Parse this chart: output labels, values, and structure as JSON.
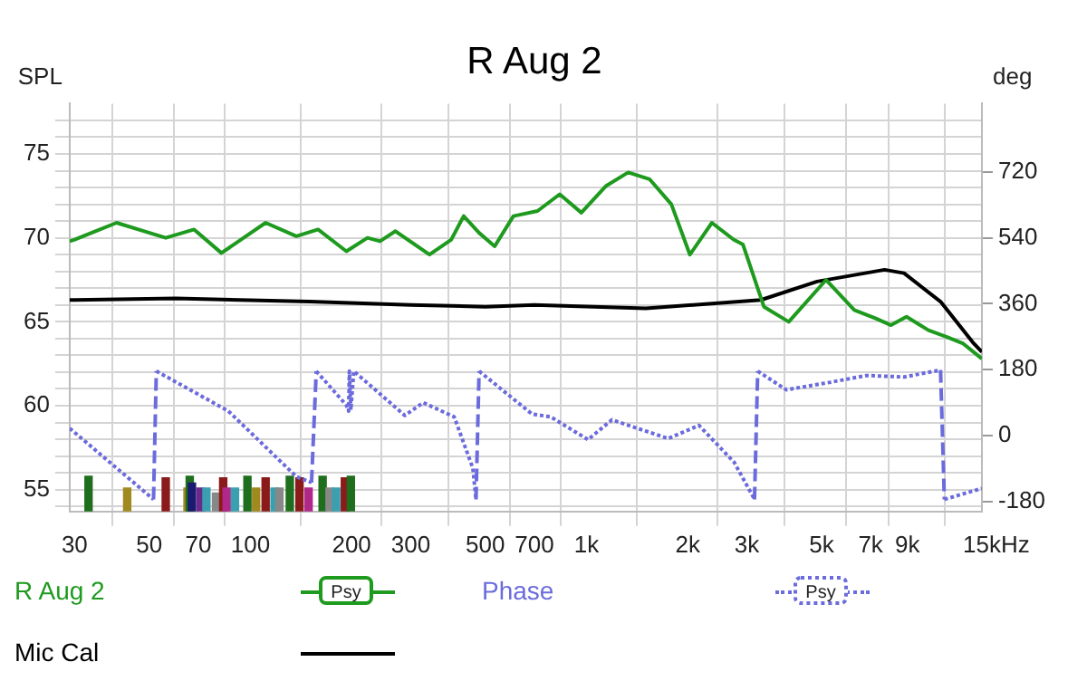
{
  "chart_data": {
    "type": "line",
    "title": "R Aug 2",
    "ylabel": "SPL",
    "xlabel": "Hz",
    "y2label": "deg",
    "annotations": [
      "Psy",
      "Psy"
    ],
    "log": "x",
    "grid": true,
    "legend": "bottom",
    "marker": "none",
    "xlim": [
      29,
      15000
    ],
    "xticks": [
      30,
      50,
      70,
      100,
      200,
      300,
      500,
      700,
      {
        "value": 1000,
        "label": "1k"
      },
      {
        "value": 2000,
        "label": "2k"
      },
      {
        "value": 3000,
        "label": "3k"
      },
      {
        "value": 5000,
        "label": "5k"
      },
      {
        "value": 7000,
        "label": "7k"
      },
      {
        "value": 9000,
        "label": "9k"
      },
      {
        "value": 15000,
        "label": "15k"
      }
    ],
    "ylim": [
      53.7,
      78
    ],
    "yticks": [
      {
        "value": 54,
        "label": null
      },
      55,
      {
        "value": 56,
        "label": null
      },
      {
        "value": 57,
        "label": null
      },
      {
        "value": 58,
        "label": null
      },
      {
        "value": 59,
        "label": null
      },
      60,
      {
        "value": 61,
        "label": null
      },
      {
        "value": 62,
        "label": null
      },
      {
        "value": 63,
        "label": null
      },
      {
        "value": 64,
        "label": null
      },
      65,
      {
        "value": 66,
        "label": null
      },
      {
        "value": 67,
        "label": null
      },
      {
        "value": 68,
        "label": null
      },
      {
        "value": 69,
        "label": null
      },
      70,
      {
        "value": 71,
        "label": null
      },
      {
        "value": 72,
        "label": null
      },
      {
        "value": 73,
        "label": null
      },
      {
        "value": 74,
        "label": null
      },
      75,
      {
        "value": 76,
        "label": null
      },
      {
        "value": 77,
        "label": null
      }
    ],
    "y2lim": [
      -207,
      906
    ],
    "y2ticks": [
      -180,
      0,
      180,
      360,
      540,
      720
    ],
    "series": [
      {
        "name": "R Aug 2",
        "color": "#1e9a1e",
        "line_style": "solid",
        "x": [
          29,
          30,
          40,
          56,
          68,
          82,
          111,
          137,
          159,
          193,
          223,
          243,
          270,
          341,
          396,
          431,
          479,
          533,
          606,
          715,
          832,
          965,
          1144,
          1330,
          1539,
          1788,
          2030,
          2360,
          2737,
          2920,
          3370,
          3995,
          5160,
          6260,
          7250,
          8050,
          8950,
          10400,
          11800,
          13200,
          15000
        ],
        "values": [
          69.8,
          69.9,
          70.9,
          70.0,
          70.5,
          69.1,
          70.9,
          70.1,
          70.5,
          69.2,
          70.0,
          69.8,
          70.4,
          69.0,
          69.9,
          71.3,
          70.3,
          69.5,
          71.3,
          71.6,
          72.6,
          71.5,
          73.1,
          73.9,
          73.5,
          72.0,
          69.0,
          70.9,
          69.9,
          69.6,
          65.9,
          65.0,
          67.5,
          65.7,
          65.2,
          64.8,
          65.3,
          64.5,
          64.1,
          63.7,
          62.8
        ]
      },
      {
        "name": "Phase",
        "color": "#6b6bdd",
        "line_style": "dotted",
        "axis": "y2",
        "x": [
          29,
          51.5,
          52.5,
          86,
          137,
          152,
          157,
          193,
          196,
          197,
          199,
          203,
          288,
          327,
          404,
          459,
          469,
          479,
          688,
          783,
          1010,
          1190,
          1750,
          2160,
          2750,
          3160,
          3230,
          3930,
          5270,
          6810,
          8800,
          11300,
          11600,
          15000
        ],
        "values": [
          20,
          -174,
          176,
          67,
          -112,
          -128,
          176,
          83,
          67,
          176,
          70,
          176,
          55,
          90,
          51,
          -89,
          -174,
          176,
          59,
          51,
          -11,
          43,
          -8,
          28,
          -73,
          -174,
          176,
          125,
          145,
          164,
          160,
          179,
          -174,
          -144
        ]
      },
      {
        "name": "Mic Cal",
        "color": "#000000",
        "line_style": "solid",
        "x": [
          29,
          30,
          60,
          150,
          300,
          500,
          700,
          1500,
          3300,
          4850,
          7700,
          8800,
          11300,
          14200,
          15000
        ],
        "values": [
          66.3,
          66.3,
          66.4,
          66.2,
          66.0,
          65.9,
          66.0,
          65.8,
          66.3,
          67.4,
          68.1,
          67.9,
          66.2,
          63.7,
          63.2
        ]
      },
      {
        "type": "bar",
        "x": [
          33,
          43,
          56,
          65,
          66,
          67,
          71,
          74,
          79,
          83,
          85,
          90,
          98,
          104,
          111,
          118,
          122,
          131,
          140,
          149,
          164,
          172,
          180,
          191,
          199
        ],
        "values": [
          55.8,
          55.1,
          55.7,
          55.1,
          55.8,
          55.4,
          55.1,
          55.1,
          54.8,
          55.7,
          55.1,
          55.1,
          55.8,
          55.1,
          55.7,
          55.1,
          55.1,
          55.8,
          55.7,
          55.1,
          55.8,
          55.1,
          55.1,
          55.7,
          55.8
        ],
        "colors": [
          "#1e6e1e",
          "#a08a20",
          "#8b1a1a",
          "#a08a20",
          "#1e6e1e",
          "#1a1a70",
          "#6a2a8a",
          "#3aa0b0",
          "#888888",
          "#8b1a1a",
          "#b0288a",
          "#3aa0b0",
          "#1e6e1e",
          "#a08a20",
          "#8b1a1a",
          "#3aa0b0",
          "#888888",
          "#1e6e1e",
          "#8b1a1a",
          "#b0288a",
          "#1e6e1e",
          "#888888",
          "#3aa0b0",
          "#8b1a1a",
          "#1e6e1e"
        ]
      }
    ]
  }
}
